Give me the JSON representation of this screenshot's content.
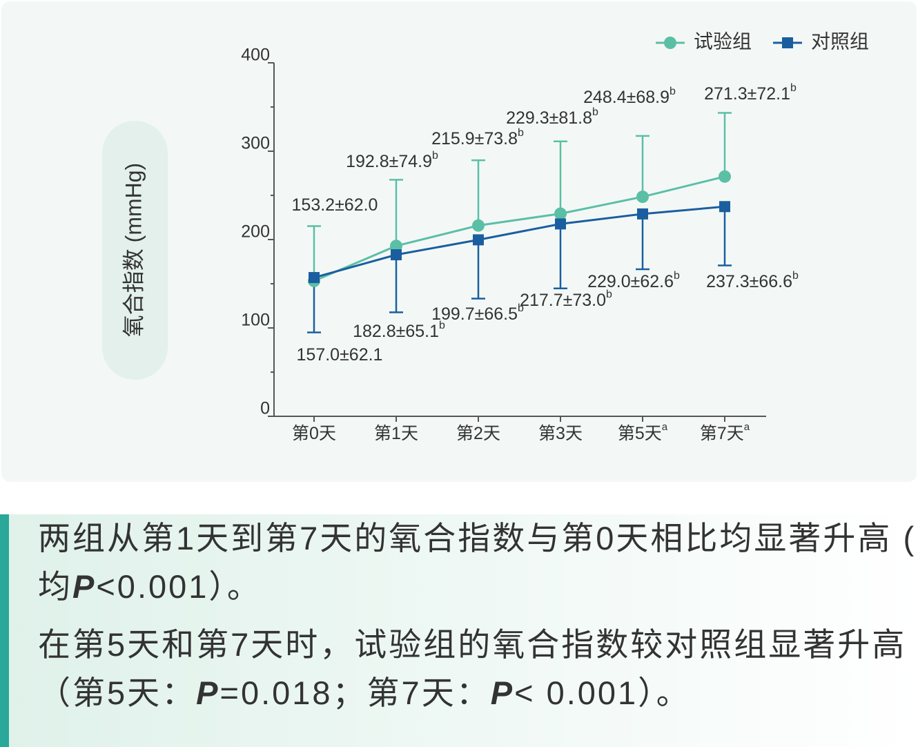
{
  "chart_data": {
    "type": "line",
    "y_label": "氧合指数 (mmHg)",
    "categories": [
      "第0天",
      "第1天",
      "第2天",
      "第3天",
      "第5天",
      "第7天"
    ],
    "category_marks": [
      null,
      null,
      null,
      null,
      "a",
      "a"
    ],
    "ylim": [
      0,
      400
    ],
    "yticks": [
      0,
      100,
      200,
      300,
      400
    ],
    "yminorticks": [
      50,
      150,
      250,
      350
    ],
    "series": [
      {
        "name": "试验组",
        "color": "#5bbfa5",
        "marker": "circle",
        "error_direction": "up",
        "values": [
          153.2,
          192.8,
          215.9,
          229.3,
          248.4,
          271.3
        ],
        "errors": [
          62.0,
          74.9,
          73.8,
          81.8,
          68.9,
          72.1
        ],
        "value_labels": [
          "153.2±62.0",
          "192.8±74.9",
          "215.9±73.8",
          "229.3±81.8",
          "248.4±68.9",
          "271.3±72.1"
        ],
        "value_label_marks": [
          null,
          "b",
          "b",
          "b",
          "b",
          "b"
        ]
      },
      {
        "name": "对照组",
        "color": "#1a5ea0",
        "marker": "square",
        "error_direction": "down",
        "values": [
          157.0,
          182.8,
          199.7,
          217.7,
          229.0,
          237.3
        ],
        "errors": [
          62.1,
          65.1,
          66.5,
          73.0,
          62.6,
          66.6
        ],
        "value_labels": [
          "157.0±62.1",
          "182.8±65.1",
          "199.7±66.5",
          "217.7±73.0",
          "229.0±62.6",
          "237.3±66.6"
        ],
        "value_label_marks": [
          null,
          "b",
          "b",
          "b",
          "b",
          "b"
        ]
      }
    ]
  },
  "notes": [
    {
      "before": "两组从第1天到第7天的氧合指数与第0天相比均显著升高 ( 均",
      "p": "P",
      "after": "<0.001）。"
    },
    {
      "before": "在第5天和第7天时，试验组的氧合指数较对照组显著升高（第5天：",
      "p": "P",
      "after": "=0.018；第7天：",
      "p2": "P",
      "after2": "< 0.001）。"
    }
  ]
}
